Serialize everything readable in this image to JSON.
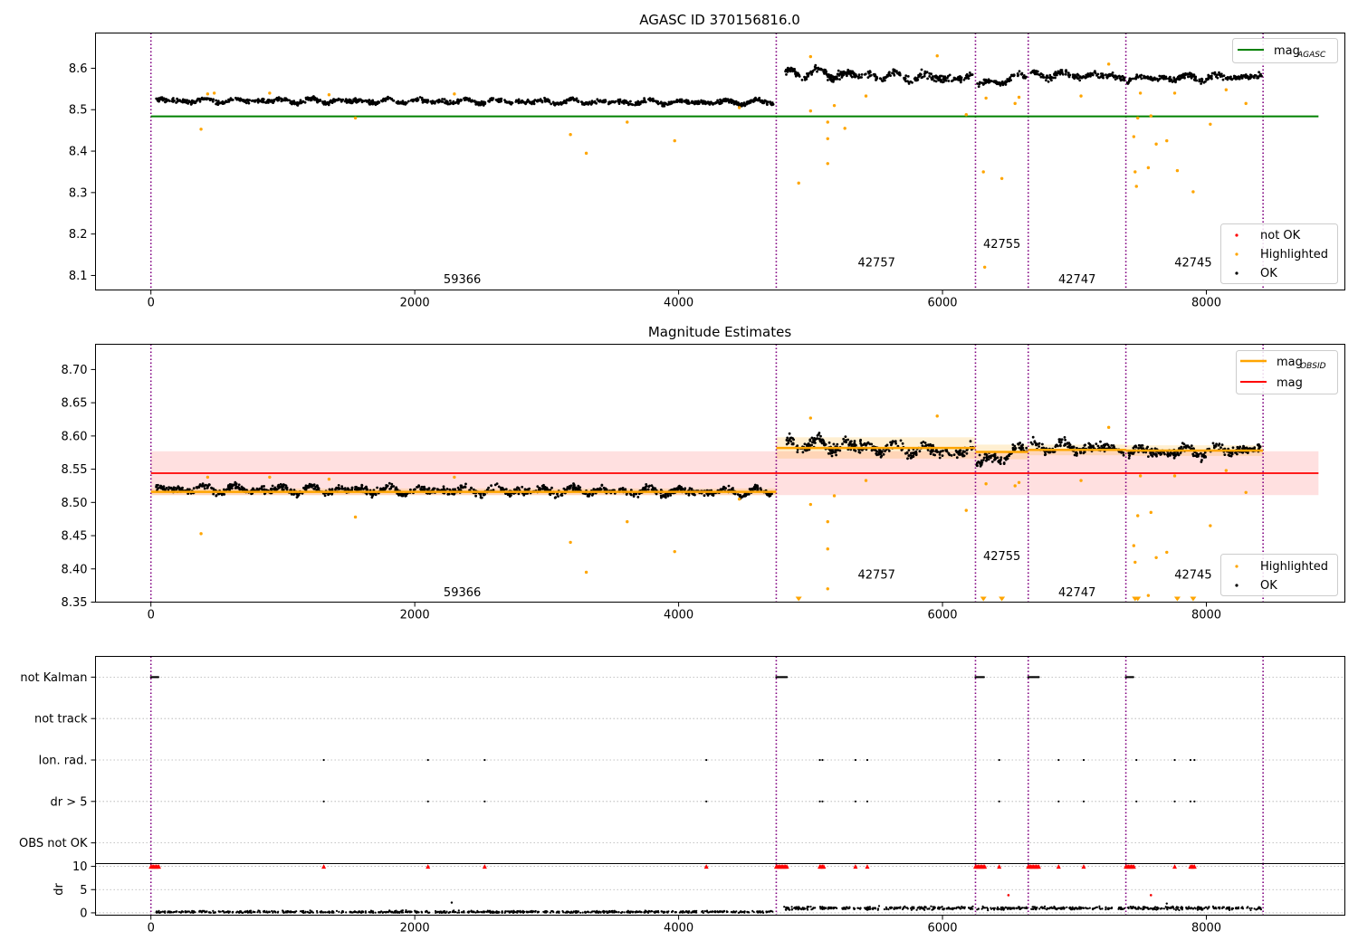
{
  "chart_data": [
    {
      "type": "scatter",
      "title": "AGASC ID 370156816.0",
      "xlim": [
        -420,
        9050
      ],
      "ylim": [
        8.065,
        8.685
      ],
      "xticks": [
        0,
        2000,
        4000,
        6000,
        8000
      ],
      "yticks": [
        8.1,
        8.2,
        8.3,
        8.4,
        8.5,
        8.6
      ],
      "xtick_labels": [
        "0",
        "2000",
        "4000",
        "6000",
        "8000"
      ],
      "ytick_labels": [
        "8.1",
        "8.2",
        "8.3",
        "8.4",
        "8.5",
        "8.6"
      ],
      "obsid_boundaries": [
        0,
        4740,
        6250,
        6650,
        7390,
        8430
      ],
      "obsid_labels": [
        {
          "text": "59366",
          "x": 2360,
          "y": 8.09
        },
        {
          "text": "42757",
          "x": 5500,
          "y": 8.13
        },
        {
          "text": "42755",
          "x": 6450,
          "y": 8.175
        },
        {
          "text": "42747",
          "x": 7020,
          "y": 8.09
        },
        {
          "text": "42745",
          "x": 7900,
          "y": 8.13
        }
      ],
      "lines": [
        {
          "name": "mag",
          "subscript": "AGASC",
          "color": "#008000",
          "y": 8.484,
          "x": [
            0,
            8850
          ]
        }
      ],
      "ok_segments": [
        {
          "x0": 40,
          "x1": 4720,
          "start": 8.522,
          "end": 8.518,
          "noise": 0.009
        },
        {
          "x0": 4800,
          "x1": 6230,
          "start": 8.59,
          "end": 8.575,
          "noise": 0.015
        },
        {
          "x0": 6260,
          "x1": 6640,
          "start": 8.56,
          "end": 8.58,
          "noise": 0.012
        },
        {
          "x0": 6670,
          "x1": 7380,
          "start": 8.585,
          "end": 8.58,
          "noise": 0.012
        },
        {
          "x0": 7400,
          "x1": 8420,
          "start": 8.575,
          "end": 8.58,
          "noise": 0.012
        }
      ],
      "highlighted_points": [
        [
          380,
          8.453
        ],
        [
          430,
          8.538
        ],
        [
          480,
          8.54
        ],
        [
          900,
          8.54
        ],
        [
          1350,
          8.536
        ],
        [
          1550,
          8.48
        ],
        [
          2300,
          8.538
        ],
        [
          3180,
          8.44
        ],
        [
          3300,
          8.395
        ],
        [
          3610,
          8.47
        ],
        [
          3970,
          8.425
        ],
        [
          4460,
          8.505
        ],
        [
          4910,
          8.323
        ],
        [
          5000,
          8.497
        ],
        [
          5000,
          8.628
        ],
        [
          5130,
          8.47
        ],
        [
          5130,
          8.43
        ],
        [
          5130,
          8.37
        ],
        [
          5180,
          8.51
        ],
        [
          5260,
          8.455
        ],
        [
          5420,
          8.533
        ],
        [
          5960,
          8.63
        ],
        [
          6180,
          8.488
        ],
        [
          6310,
          8.35
        ],
        [
          6320,
          8.12
        ],
        [
          6330,
          8.528
        ],
        [
          6450,
          8.334
        ],
        [
          6550,
          8.515
        ],
        [
          6580,
          8.53
        ],
        [
          7050,
          8.533
        ],
        [
          7260,
          8.61
        ],
        [
          7450,
          8.435
        ],
        [
          7460,
          8.35
        ],
        [
          7470,
          8.315
        ],
        [
          7480,
          8.48
        ],
        [
          7500,
          8.54
        ],
        [
          7560,
          8.36
        ],
        [
          7580,
          8.485
        ],
        [
          7620,
          8.417
        ],
        [
          7700,
          8.425
        ],
        [
          7760,
          8.54
        ],
        [
          7780,
          8.353
        ],
        [
          7900,
          8.302
        ],
        [
          8030,
          8.465
        ],
        [
          8300,
          8.515
        ],
        [
          8150,
          8.548
        ]
      ],
      "legend": {
        "position": "top-right",
        "entries": [
          "mag"
        ]
      },
      "legend2": {
        "position": "lower-right",
        "entries": [
          "not OK",
          "Highlighted",
          "OK"
        ]
      },
      "colors": {
        "ok": "#000000",
        "highlighted": "#ffa500",
        "not_ok": "#ff0000",
        "boundary": "#800080"
      }
    },
    {
      "type": "scatter",
      "title": "Magnitude Estimates",
      "xlim": [
        -420,
        9050
      ],
      "ylim": [
        8.35,
        8.738
      ],
      "xticks": [
        0,
        2000,
        4000,
        6000,
        8000
      ],
      "yticks": [
        8.35,
        8.4,
        8.45,
        8.5,
        8.55,
        8.6,
        8.65,
        8.7
      ],
      "xtick_labels": [
        "0",
        "2000",
        "4000",
        "6000",
        "8000"
      ],
      "ytick_labels": [
        "8.35",
        "8.40",
        "8.45",
        "8.50",
        "8.55",
        "8.60",
        "8.65",
        "8.70"
      ],
      "obsid_boundaries": [
        0,
        4740,
        6250,
        6650,
        7390,
        8430
      ],
      "obsid_labels": [
        {
          "text": "59366",
          "x": 2360,
          "y": 8.364
        },
        {
          "text": "42757",
          "x": 5500,
          "y": 8.391
        },
        {
          "text": "42755",
          "x": 6450,
          "y": 8.419
        },
        {
          "text": "42747",
          "x": 7020,
          "y": 8.364
        },
        {
          "text": "42745",
          "x": 7900,
          "y": 8.391
        }
      ],
      "mag_band": {
        "y": 8.544,
        "low": 8.511,
        "high": 8.577,
        "x": [
          0,
          8850
        ],
        "color": "#ff0000"
      },
      "obsid_mags": [
        {
          "x": [
            0,
            4740
          ],
          "y": 8.516,
          "low": 8.511,
          "high": 8.521
        },
        {
          "x": [
            4740,
            6250
          ],
          "y": 8.582,
          "low": 8.566,
          "high": 8.598
        },
        {
          "x": [
            6250,
            6650
          ],
          "y": 8.576,
          "low": 8.565,
          "high": 8.587
        },
        {
          "x": [
            6650,
            7390
          ],
          "y": 8.579,
          "low": 8.571,
          "high": 8.587
        },
        {
          "x": [
            7390,
            8430
          ],
          "y": 8.578,
          "low": 8.57,
          "high": 8.586
        }
      ],
      "ok_segments": [
        {
          "x0": 40,
          "x1": 4720,
          "start": 8.52,
          "end": 8.516,
          "noise": 0.009
        },
        {
          "x0": 4800,
          "x1": 6230,
          "start": 8.59,
          "end": 8.575,
          "noise": 0.015
        },
        {
          "x0": 6260,
          "x1": 6640,
          "start": 8.56,
          "end": 8.58,
          "noise": 0.012
        },
        {
          "x0": 6670,
          "x1": 7380,
          "start": 8.585,
          "end": 8.58,
          "noise": 0.012
        },
        {
          "x0": 7400,
          "x1": 8420,
          "start": 8.575,
          "end": 8.58,
          "noise": 0.012
        }
      ],
      "highlighted_points": [
        [
          380,
          8.453
        ],
        [
          430,
          8.538
        ],
        [
          900,
          8.538
        ],
        [
          1350,
          8.535
        ],
        [
          1550,
          8.478
        ],
        [
          2300,
          8.538
        ],
        [
          3180,
          8.44
        ],
        [
          3300,
          8.395
        ],
        [
          3610,
          8.471
        ],
        [
          3970,
          8.426
        ],
        [
          4460,
          8.505
        ],
        [
          5000,
          8.497
        ],
        [
          5000,
          8.627
        ],
        [
          5130,
          8.471
        ],
        [
          5130,
          8.43
        ],
        [
          5130,
          8.37
        ],
        [
          5180,
          8.51
        ],
        [
          5420,
          8.533
        ],
        [
          5960,
          8.63
        ],
        [
          6180,
          8.488
        ],
        [
          6330,
          8.528
        ],
        [
          6550,
          8.525
        ],
        [
          6580,
          8.53
        ],
        [
          7050,
          8.533
        ],
        [
          7260,
          8.613
        ],
        [
          7450,
          8.435
        ],
        [
          7460,
          8.41
        ],
        [
          7480,
          8.48
        ],
        [
          7500,
          8.54
        ],
        [
          7560,
          8.36
        ],
        [
          7580,
          8.485
        ],
        [
          7620,
          8.417
        ],
        [
          7700,
          8.425
        ],
        [
          7760,
          8.54
        ],
        [
          8030,
          8.465
        ],
        [
          8300,
          8.515
        ],
        [
          8150,
          8.548
        ]
      ],
      "offscale_markers": [
        4910,
        6310,
        6450,
        7460,
        7480,
        7780,
        7900
      ],
      "legend": {
        "position": "top-right",
        "entries": [
          "mag",
          "mag"
        ]
      },
      "legend2": {
        "position": "lower-right",
        "entries": [
          "Highlighted",
          "OK"
        ]
      },
      "colors": {
        "ok": "#000000",
        "highlighted": "#ffa500",
        "obsid_mag": "#ffa500",
        "mag": "#ff0000",
        "boundary": "#800080"
      }
    },
    {
      "type": "scatter",
      "title": "",
      "xlim": [
        -420,
        9050
      ],
      "flag_rows": [
        "not Kalman",
        "not track",
        "Ion. rad.",
        "dr > 5",
        "OBS not OK"
      ],
      "flag_events": {
        "not Kalman": [
          [
            0,
            60
          ],
          [
            4740,
            4820
          ],
          [
            6250,
            6320
          ],
          [
            6650,
            6730
          ],
          [
            7390,
            7450
          ]
        ],
        "not track": [],
        "Ion. rad.": [
          1310,
          2100,
          2530,
          4210,
          5070,
          5090,
          5340,
          5430,
          6430,
          6880,
          7070,
          7470,
          7760,
          7880,
          7910
        ],
        "dr > 5": [
          1310,
          2100,
          2530,
          4210,
          5070,
          5090,
          5340,
          5430,
          6430,
          6880,
          7070,
          7470,
          7760,
          7880,
          7910
        ],
        "OBS not OK": []
      },
      "flag_ylim": [
        0.5,
        5.5
      ],
      "dr": {
        "ylabel": "dr",
        "ylim": [
          -0.5,
          10.6
        ],
        "yticks": [
          0,
          5,
          10
        ],
        "ytick_labels": [
          "0",
          "5",
          "10"
        ],
        "ok_segments": [
          {
            "x0": 40,
            "x1": 4720,
            "base": 0.2,
            "noise": 0.25
          },
          {
            "x0": 4800,
            "x1": 6230,
            "base": 1.0,
            "noise": 0.35
          },
          {
            "x0": 6260,
            "x1": 6640,
            "base": 1.0,
            "noise": 0.35
          },
          {
            "x0": 6670,
            "x1": 7380,
            "base": 1.0,
            "noise": 0.35
          },
          {
            "x0": 7400,
            "x1": 8420,
            "base": 1.0,
            "noise": 0.35
          }
        ],
        "outliers": [
          [
            2280,
            2.2
          ],
          [
            6500,
            3.8
          ],
          [
            7580,
            3.8
          ],
          [
            7700,
            2.0
          ]
        ],
        "clipped_red": [
          [
            0,
            60
          ],
          [
            4740,
            4820
          ],
          [
            5070,
            5100
          ],
          [
            5340,
            5340
          ],
          [
            5430,
            5430
          ],
          [
            6250,
            6320
          ],
          [
            6430,
            6430
          ],
          [
            6650,
            6730
          ],
          [
            6880,
            6880
          ],
          [
            7070,
            7070
          ],
          [
            7390,
            7450
          ],
          [
            1310,
            1310
          ],
          [
            2100,
            2100
          ],
          [
            2530,
            2530
          ],
          [
            4210,
            4210
          ],
          [
            7760,
            7760
          ],
          [
            7880,
            7910
          ]
        ]
      },
      "xticks": [
        0,
        2000,
        4000,
        6000,
        8000
      ],
      "xtick_labels": [
        "0",
        "2000",
        "4000",
        "6000",
        "8000"
      ],
      "obsid_boundaries": [
        0,
        4740,
        6250,
        6650,
        7390,
        8430
      ],
      "colors": {
        "ok": "#000000",
        "not_ok": "#ff0000",
        "boundary": "#800080",
        "grid": "#b0b0b0"
      }
    }
  ],
  "legends": {
    "mag_agasc_main": "mag",
    "mag_agasc_sub": "AGASC",
    "not_ok": "not OK",
    "highlighted": "Highlighted",
    "ok": "OK",
    "mag_obsid_main": "mag",
    "mag_obsid_sub": "OBSID",
    "mag": "mag",
    "highlighted2": "Highlighted",
    "ok2": "OK"
  }
}
